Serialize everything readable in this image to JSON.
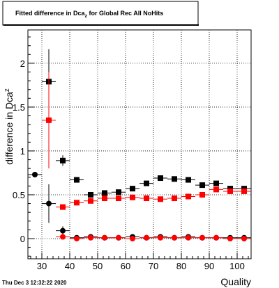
{
  "chart_data": {
    "type": "scatter",
    "title": "Fitted difference in Dca",
    "title_sub": "z",
    "title_rest": " for Global Rec All NoHits",
    "xlabel": "Quality",
    "ylabel": "difference in Dca",
    "ylabel_sub": "z",
    "xlim": [
      25,
      105
    ],
    "ylim": [
      -0.23,
      2.38
    ],
    "grid": true,
    "x_ticks": [
      30,
      40,
      50,
      60,
      70,
      80,
      90,
      100
    ],
    "y_ticks": [
      {
        "v": 0,
        "label": "0"
      },
      {
        "v": 0.5,
        "label": "0.5"
      },
      {
        "v": 1,
        "label": "1"
      },
      {
        "v": 1.5,
        "label": "1.5"
      },
      {
        "v": 2,
        "label": "2"
      }
    ],
    "series": [
      {
        "marker": "square",
        "color": "#000000",
        "x": [
          32.5,
          37.5,
          42.5,
          47.5,
          52.5,
          57.5,
          62.5,
          67.5,
          72.5,
          77.5,
          82.5,
          87.5,
          92.5,
          97.5,
          102.5
        ],
        "y": [
          1.79,
          0.89,
          0.67,
          0.5,
          0.52,
          0.53,
          0.57,
          0.63,
          0.69,
          0.68,
          0.67,
          0.61,
          0.63,
          0.57,
          0.57
        ],
        "yerr": [
          0.37,
          0.06,
          0.03,
          0.02,
          0.02,
          0.02,
          0.02,
          0.02,
          0.02,
          0.02,
          0.02,
          0.02,
          0.02,
          0.02,
          0.02
        ]
      },
      {
        "marker": "square",
        "color": "#ff0000",
        "x": [
          32.5,
          37.5,
          42.5,
          47.5,
          52.5,
          57.5,
          62.5,
          67.5,
          72.5,
          77.5,
          82.5,
          87.5,
          92.5,
          97.5,
          102.5
        ],
        "y": [
          1.35,
          0.36,
          0.41,
          0.43,
          0.46,
          0.46,
          0.47,
          0.46,
          0.45,
          0.46,
          0.48,
          0.5,
          0.56,
          0.54,
          0.54
        ],
        "yerr": [
          0.55,
          0.03,
          0.02,
          0.02,
          0.02,
          0.02,
          0.02,
          0.02,
          0.02,
          0.02,
          0.02,
          0.02,
          0.02,
          0.02,
          0.02
        ]
      },
      {
        "marker": "circle",
        "color": "#000000",
        "x": [
          27.5,
          32.5,
          37.5,
          42.5,
          47.5,
          52.5,
          57.5,
          62.5,
          67.5,
          72.5,
          77.5,
          82.5,
          87.5,
          92.5,
          97.5,
          102.5
        ],
        "y": [
          0.73,
          0.4,
          0.09,
          0.01,
          0.02,
          0.01,
          0.01,
          0.02,
          0.01,
          0.02,
          0.01,
          0.02,
          0.01,
          0.01,
          0.01,
          0.01
        ],
        "yerr": [
          0.0,
          0.22,
          0.05,
          0.02,
          0.01,
          0.01,
          0.01,
          0.01,
          0.01,
          0.01,
          0.01,
          0.01,
          0.01,
          0.01,
          0.01,
          0.01
        ]
      },
      {
        "marker": "circle",
        "color": "#ff0000",
        "x": [
          37.5,
          42.5,
          47.5,
          52.5,
          57.5,
          62.5,
          67.5,
          72.5,
          77.5,
          82.5,
          87.5,
          92.5,
          97.5,
          102.5
        ],
        "y": [
          0.02,
          0.0,
          0.01,
          0.01,
          0.01,
          0.0,
          0.01,
          0.01,
          0.01,
          0.01,
          0.01,
          0.01,
          0.0,
          0.0
        ],
        "yerr": [
          0.02,
          0.02,
          0.01,
          0.01,
          0.01,
          0.01,
          0.01,
          0.01,
          0.01,
          0.01,
          0.01,
          0.01,
          0.01,
          0.01
        ]
      }
    ]
  },
  "footer": {
    "timestamp": "Thu Dec  3 12:32:22 2020"
  }
}
